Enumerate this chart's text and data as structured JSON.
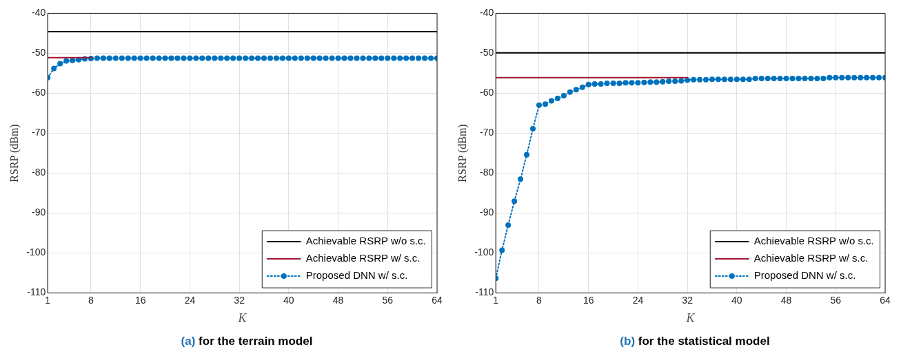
{
  "chart_data": [
    {
      "type": "line",
      "title": "(a) for the terrain model",
      "xlabel": "K",
      "ylabel": "RSRP (dBm)",
      "x": [
        1,
        2,
        3,
        4,
        5,
        6,
        7,
        8,
        9,
        10,
        11,
        12,
        13,
        14,
        15,
        16,
        17,
        18,
        19,
        20,
        21,
        22,
        23,
        24,
        25,
        26,
        27,
        28,
        29,
        30,
        31,
        32,
        33,
        34,
        35,
        36,
        37,
        38,
        39,
        40,
        41,
        42,
        43,
        44,
        45,
        46,
        47,
        48,
        49,
        50,
        51,
        52,
        53,
        54,
        55,
        56,
        57,
        58,
        59,
        60,
        61,
        62,
        63,
        64
      ],
      "series": [
        {
          "name": "Achievable RSRP w/o s.c.",
          "color": "#000000",
          "line_style": "solid",
          "x": [
            1,
            64
          ],
          "values": [
            -44.6,
            -44.6
          ]
        },
        {
          "name": "Achievable RSRP w/ s.c.",
          "color": "#a2142f",
          "line_style": "solid",
          "x": [
            1,
            8
          ],
          "values": [
            -51.1,
            -51.1
          ]
        },
        {
          "name": "Proposed DNN w/ s.c.",
          "color": "#0072bd",
          "line_style": "dotted",
          "marker": "circle",
          "values": [
            -56.1,
            -53.8,
            -52.6,
            -51.9,
            -51.8,
            -51.6,
            -51.4,
            -51.3,
            -51.2,
            -51.2,
            -51.2,
            -51.2,
            -51.2,
            -51.2,
            -51.2,
            -51.2,
            -51.2,
            -51.2,
            -51.2,
            -51.2,
            -51.2,
            -51.2,
            -51.2,
            -51.2,
            -51.2,
            -51.2,
            -51.2,
            -51.2,
            -51.2,
            -51.2,
            -51.2,
            -51.2,
            -51.2,
            -51.2,
            -51.2,
            -51.2,
            -51.2,
            -51.2,
            -51.2,
            -51.2,
            -51.2,
            -51.2,
            -51.2,
            -51.2,
            -51.2,
            -51.2,
            -51.2,
            -51.2,
            -51.2,
            -51.2,
            -51.2,
            -51.2,
            -51.2,
            -51.2,
            -51.2,
            -51.2,
            -51.2,
            -51.2,
            -51.2,
            -51.2,
            -51.2,
            -51.2,
            -51.2,
            -51.2
          ]
        }
      ],
      "xlim": [
        1,
        64
      ],
      "xticks": [
        1,
        8,
        16,
        24,
        32,
        40,
        48,
        56,
        64
      ],
      "ylim": [
        -110,
        -40
      ],
      "yticks": [
        -110,
        -100,
        -90,
        -80,
        -70,
        -60,
        -50,
        -40
      ],
      "grid": true,
      "legend": "bottom right"
    },
    {
      "type": "line",
      "title": "(b) for the statistical model",
      "xlabel": "K",
      "ylabel": "RSRP (dBm)",
      "x": [
        1,
        2,
        3,
        4,
        5,
        6,
        7,
        8,
        9,
        10,
        11,
        12,
        13,
        14,
        15,
        16,
        17,
        18,
        19,
        20,
        21,
        22,
        23,
        24,
        25,
        26,
        27,
        28,
        29,
        30,
        31,
        32,
        33,
        34,
        35,
        36,
        37,
        38,
        39,
        40,
        41,
        42,
        43,
        44,
        45,
        46,
        47,
        48,
        49,
        50,
        51,
        52,
        53,
        54,
        55,
        56,
        57,
        58,
        59,
        60,
        61,
        62,
        63,
        64
      ],
      "series": [
        {
          "name": "Achievable RSRP w/o s.c.",
          "color": "#000000",
          "line_style": "solid",
          "x": [
            1,
            64
          ],
          "values": [
            -49.9,
            -49.9
          ]
        },
        {
          "name": "Achievable RSRP w/ s.c.",
          "color": "#a2142f",
          "line_style": "solid",
          "x": [
            1,
            32
          ],
          "values": [
            -56.1,
            -56.1
          ]
        },
        {
          "name": "Proposed DNN w/ s.c.",
          "color": "#0072bd",
          "line_style": "dotted",
          "marker": "circle",
          "values": [
            -106.3,
            -99.3,
            -93.0,
            -87.0,
            -81.5,
            -75.4,
            -68.9,
            -63.0,
            -62.7,
            -61.9,
            -61.3,
            -60.6,
            -59.7,
            -59.1,
            -58.5,
            -57.8,
            -57.7,
            -57.7,
            -57.5,
            -57.5,
            -57.5,
            -57.4,
            -57.4,
            -57.4,
            -57.3,
            -57.2,
            -57.2,
            -57.1,
            -57.0,
            -57.0,
            -56.9,
            -56.7,
            -56.6,
            -56.6,
            -56.6,
            -56.5,
            -56.5,
            -56.5,
            -56.5,
            -56.5,
            -56.5,
            -56.5,
            -56.3,
            -56.3,
            -56.3,
            -56.3,
            -56.3,
            -56.3,
            -56.3,
            -56.3,
            -56.3,
            -56.3,
            -56.3,
            -56.3,
            -56.1,
            -56.1,
            -56.1,
            -56.1,
            -56.1,
            -56.1,
            -56.1,
            -56.1,
            -56.1,
            -56.1
          ]
        }
      ],
      "xlim": [
        1,
        64
      ],
      "xticks": [
        1,
        8,
        16,
        24,
        32,
        40,
        48,
        56,
        64
      ],
      "ylim": [
        -110,
        -40
      ],
      "yticks": [
        -110,
        -100,
        -90,
        -80,
        -70,
        -60,
        -50,
        -40
      ],
      "grid": true,
      "legend": "bottom right"
    }
  ]
}
